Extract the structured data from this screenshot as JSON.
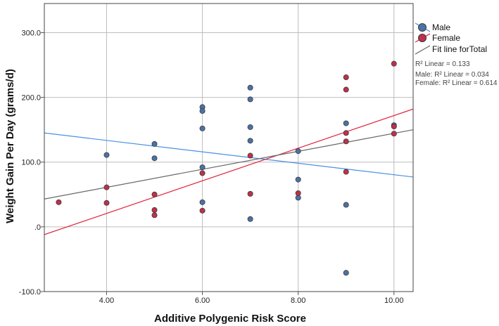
{
  "chart_data": {
    "type": "scatter",
    "xlabel": "Additive Polygenic Risk Score",
    "ylabel": "Weight Gain Per Day (grams/d)",
    "xlim": [
      2.7,
      10.4
    ],
    "ylim": [
      -100,
      345
    ],
    "x_ticks": [
      4,
      6,
      8,
      10
    ],
    "x_tick_labels": [
      "4.00",
      "6.00",
      "8.00",
      "10.00"
    ],
    "y_ticks": [
      -100,
      0,
      100,
      200,
      300
    ],
    "y_tick_labels": [
      "-100.0",
      ".0",
      "100.0",
      "200.0",
      "300.0"
    ],
    "grid": true,
    "legend_position": "top-right",
    "series": [
      {
        "name": "Male",
        "color": "#4a72a8",
        "points": [
          [
            4,
            111
          ],
          [
            5,
            128
          ],
          [
            5,
            106
          ],
          [
            6,
            185
          ],
          [
            6,
            179
          ],
          [
            6,
            152
          ],
          [
            6,
            92
          ],
          [
            6,
            38
          ],
          [
            7,
            215
          ],
          [
            7,
            197
          ],
          [
            7,
            154
          ],
          [
            7,
            133
          ],
          [
            7,
            12
          ],
          [
            8,
            117
          ],
          [
            8,
            73
          ],
          [
            8,
            45
          ],
          [
            9,
            160
          ],
          [
            9,
            34
          ],
          [
            9,
            -71
          ],
          [
            10,
            157
          ]
        ]
      },
      {
        "name": "Female",
        "color": "#c0304a",
        "points": [
          [
            3,
            38
          ],
          [
            4,
            61
          ],
          [
            4,
            37
          ],
          [
            5,
            50
          ],
          [
            5,
            26
          ],
          [
            5,
            18
          ],
          [
            6,
            83
          ],
          [
            6,
            25
          ],
          [
            7,
            110
          ],
          [
            7,
            51
          ],
          [
            8,
            52
          ],
          [
            9,
            231
          ],
          [
            9,
            212
          ],
          [
            9,
            145
          ],
          [
            9,
            132
          ],
          [
            9,
            85
          ],
          [
            10,
            252
          ],
          [
            10,
            155
          ],
          [
            10,
            144
          ]
        ]
      }
    ],
    "fit_lines": [
      {
        "name": "Male",
        "color": "#4a90e2",
        "x": [
          2.7,
          10.4
        ],
        "y": [
          145,
          77
        ]
      },
      {
        "name": "Female",
        "color": "#e0203c",
        "x": [
          2.7,
          10.4
        ],
        "y": [
          -12,
          182
        ]
      },
      {
        "name": "Fit line forTotal",
        "color": "#666666",
        "x": [
          2.7,
          10.4
        ],
        "y": [
          43,
          150
        ]
      }
    ],
    "legend": {
      "entries": [
        "Male",
        "Female",
        "Fit line forTotal"
      ]
    },
    "annotations": [
      "R² Linear = 0.133",
      "Male: R² Linear = 0.034",
      "Female: R² Linear = 0.614"
    ]
  }
}
